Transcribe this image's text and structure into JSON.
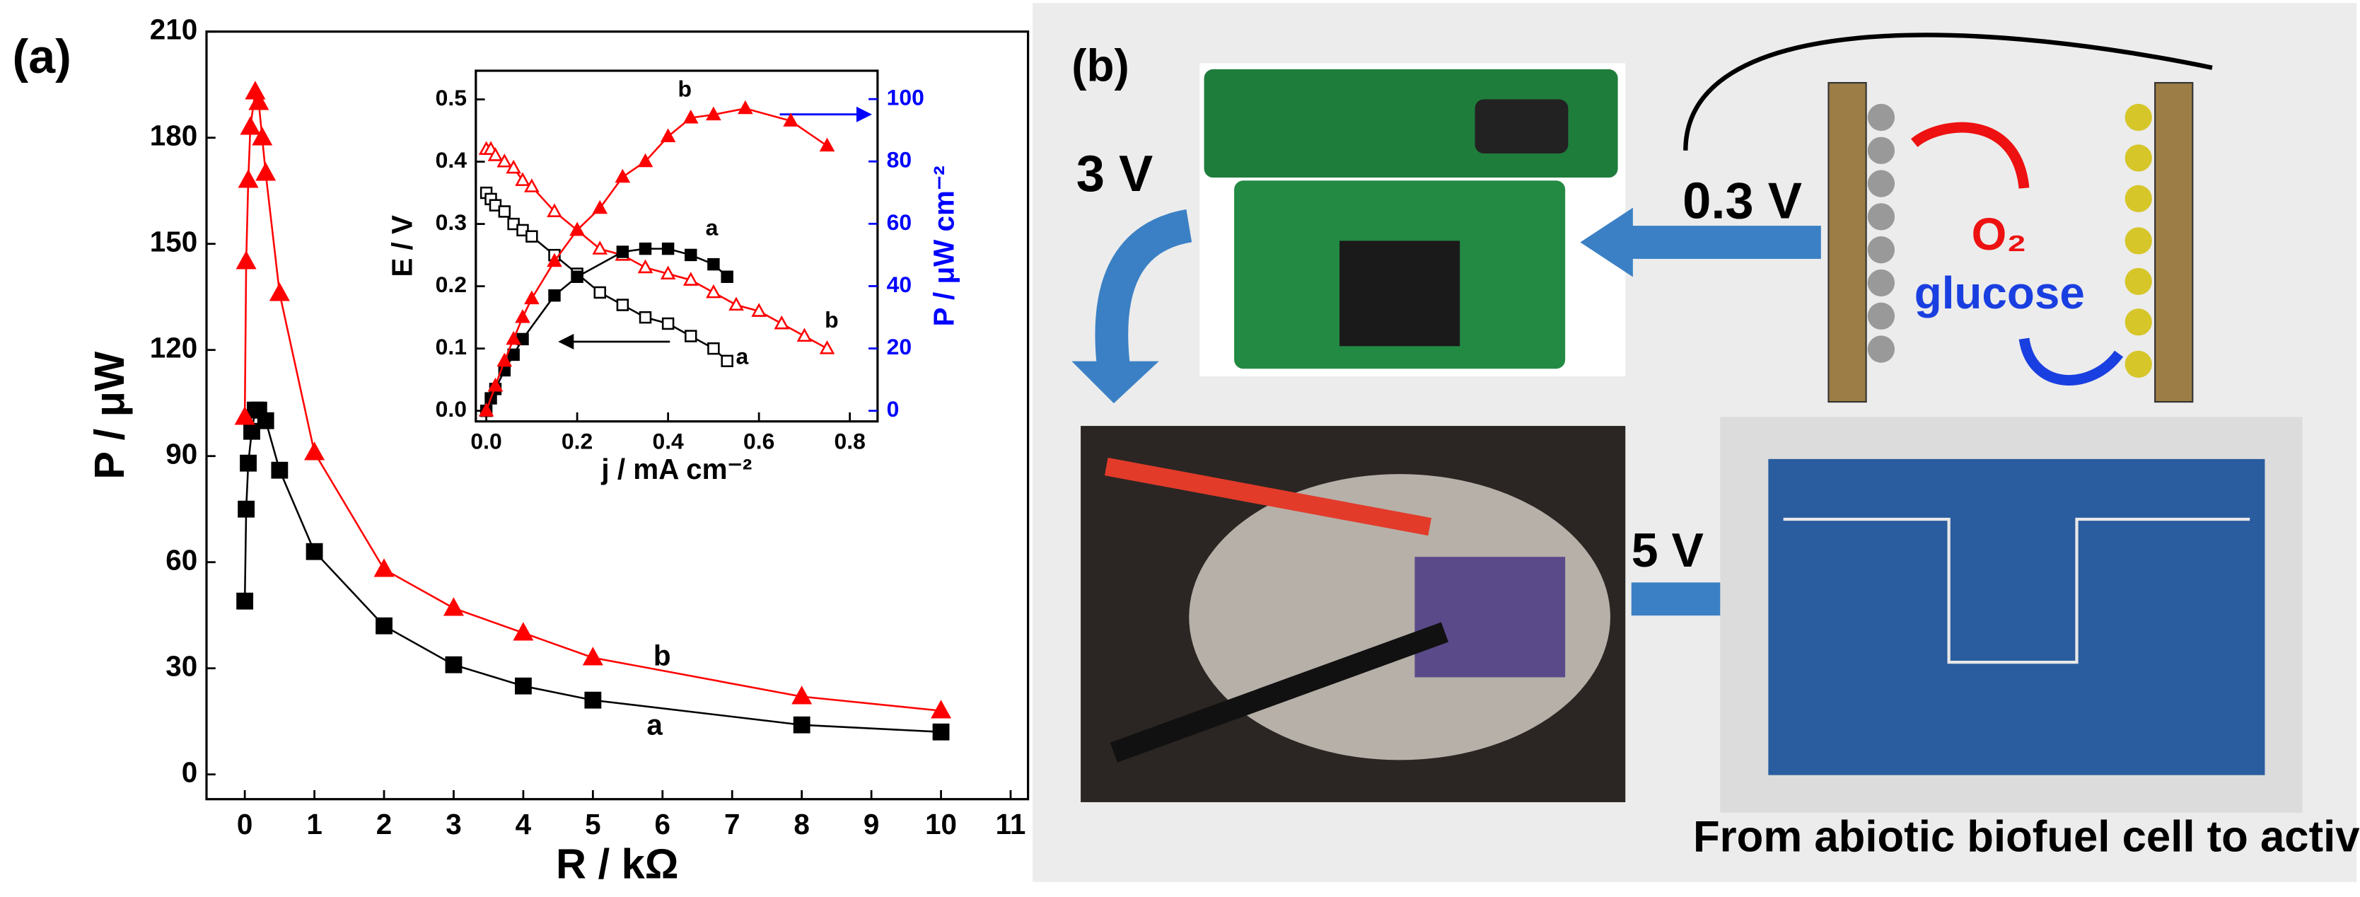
{
  "panel_a_label": "(a)",
  "chart_data": [
    {
      "type": "line",
      "xlabel": "R / kΩ",
      "ylabel": "P / μW",
      "xlim": [
        -0.55,
        11.25
      ],
      "ylim": [
        -7,
        210
      ],
      "xticks": [
        0,
        1,
        2,
        3,
        4,
        5,
        6,
        7,
        8,
        9,
        10,
        11
      ],
      "yticks": [
        0,
        30,
        60,
        90,
        120,
        150,
        180,
        210
      ],
      "series": [
        {
          "name": "a",
          "color": "#000000",
          "marker": "square",
          "filled": true,
          "x": [
            0,
            0.02,
            0.05,
            0.1,
            0.15,
            0.2,
            0.3,
            0.5,
            1,
            2,
            3,
            4,
            5,
            8,
            10
          ],
          "values": [
            49,
            75,
            88,
            97,
            103,
            103,
            100,
            86,
            63,
            42,
            31,
            25,
            21,
            14,
            12
          ]
        },
        {
          "name": "b",
          "color": "#ff0000",
          "marker": "triangle",
          "filled": true,
          "x": [
            0,
            0.02,
            0.05,
            0.08,
            0.15,
            0.2,
            0.25,
            0.3,
            0.5,
            1,
            2,
            3,
            4,
            5,
            8,
            10
          ],
          "values": [
            101,
            145,
            168,
            183,
            193,
            190,
            180,
            170,
            136,
            91,
            58,
            47,
            40,
            33,
            22,
            18
          ]
        }
      ]
    },
    {
      "type": "line",
      "xlabel": "j / mA cm⁻²",
      "ylabel": "E / V",
      "y2label": "P / μW cm⁻²",
      "y2_color": "#0000ff",
      "xlim": [
        -0.023,
        0.861
      ],
      "ylim": [
        -0.017,
        0.546
      ],
      "y2lim": [
        -3.4,
        109.1
      ],
      "xticks": [
        {
          "value": 0,
          "label": "0.0"
        },
        0.2,
        0.4,
        0.6,
        0.8
      ],
      "yticks": [
        {
          "value": 0,
          "label": "0.0"
        },
        0.1,
        0.2,
        0.3,
        0.4,
        0.5
      ],
      "y2ticks": [
        0,
        20,
        40,
        60,
        80,
        100
      ],
      "series": [
        {
          "name": "a",
          "color": "#000000",
          "marker": "square",
          "filled": false,
          "x": [
            0,
            0.01,
            0.02,
            0.04,
            0.06,
            0.08,
            0.1,
            0.15,
            0.2,
            0.25,
            0.3,
            0.35,
            0.4,
            0.45,
            0.5,
            0.53
          ],
          "values": [
            0.35,
            0.34,
            0.33,
            0.32,
            0.3,
            0.29,
            0.28,
            0.25,
            0.22,
            0.19,
            0.17,
            0.15,
            0.14,
            0.12,
            0.1,
            0.08
          ]
        },
        {
          "name": "b",
          "color": "#ff0000",
          "marker": "triangle",
          "filled": false,
          "x": [
            0,
            0.01,
            0.02,
            0.04,
            0.06,
            0.08,
            0.1,
            0.15,
            0.2,
            0.25,
            0.3,
            0.35,
            0.4,
            0.45,
            0.5,
            0.55,
            0.6,
            0.65,
            0.7,
            0.75
          ],
          "values": [
            0.42,
            0.42,
            0.41,
            0.4,
            0.39,
            0.37,
            0.36,
            0.32,
            0.29,
            0.26,
            0.25,
            0.23,
            0.22,
            0.21,
            0.19,
            0.17,
            0.16,
            0.14,
            0.12,
            0.1
          ]
        },
        {
          "name": "a",
          "color": "#000000",
          "marker": "square",
          "filled": true,
          "axis": "y2",
          "x": [
            0,
            0.01,
            0.02,
            0.04,
            0.06,
            0.08,
            0.15,
            0.2,
            0.3,
            0.35,
            0.4,
            0.45,
            0.5,
            0.53
          ],
          "values": [
            0,
            4,
            7,
            13,
            18,
            23,
            37,
            43,
            51,
            52,
            52,
            50,
            47,
            43
          ]
        },
        {
          "name": "b",
          "color": "#ff0000",
          "marker": "triangle",
          "filled": true,
          "axis": "y2",
          "x": [
            0,
            0.02,
            0.04,
            0.06,
            0.08,
            0.1,
            0.15,
            0.2,
            0.25,
            0.3,
            0.35,
            0.4,
            0.45,
            0.5,
            0.57,
            0.67,
            0.75
          ],
          "values": [
            0,
            8,
            16,
            23,
            30,
            36,
            48,
            58,
            65,
            75,
            80,
            88,
            94,
            95,
            97,
            93,
            85
          ]
        }
      ]
    }
  ],
  "panel_b": {
    "label": "(b)",
    "voltage_mid": "3 V",
    "voltage_in": "0.3 V",
    "oxygen": "O₂",
    "glucose": "glucose",
    "voltage_out": "5 V",
    "caption": "From abiotic biofuel cell to active pacemaker"
  }
}
